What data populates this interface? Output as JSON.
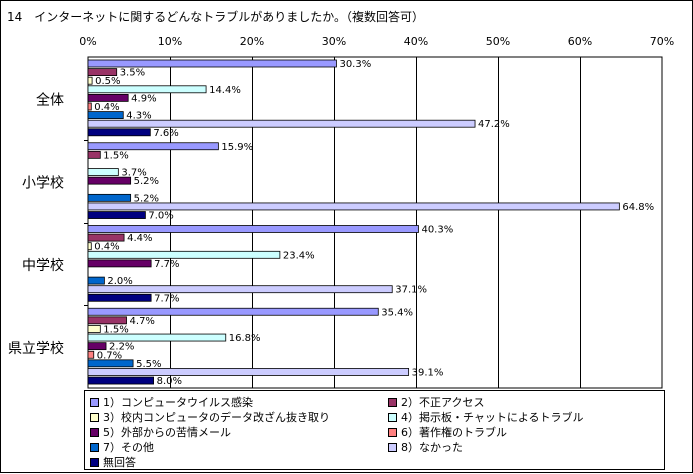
{
  "chart_data": {
    "type": "bar",
    "orientation": "horizontal",
    "title": "14　インターネットに関するどんなトラブルがありましたか。（複数回答可）",
    "unit": "%",
    "xlim": [
      0,
      70
    ],
    "ticks": [
      0,
      10,
      20,
      30,
      40,
      50,
      60,
      70
    ],
    "tick_labels": [
      "0%",
      "10%",
      "20%",
      "30%",
      "40%",
      "50%",
      "60%",
      "70%"
    ],
    "grid": true,
    "legend_position": "bottom",
    "categories": [
      "全体",
      "小学校",
      "中学校",
      "県立学校"
    ],
    "series": [
      {
        "name": "1）コンピュータウイルス感染",
        "color": "#9999ff",
        "values": [
          30.3,
          15.9,
          40.3,
          35.4
        ],
        "labels": [
          "30.3%",
          "15.9%",
          "40.3%",
          "35.4%"
        ]
      },
      {
        "name": "2）不正アクセス",
        "color": "#993366",
        "values": [
          3.5,
          1.5,
          4.4,
          4.7
        ],
        "labels": [
          "3.5%",
          "1.5%",
          "4.4%",
          "4.7%"
        ]
      },
      {
        "name": "3）校内コンピュータのデータ改ざん抜き取り",
        "color": "#ffffcc",
        "values": [
          0.5,
          0,
          0.4,
          1.5
        ],
        "labels": [
          "0.5%",
          "",
          "0.4%",
          "1.5%"
        ]
      },
      {
        "name": "4）掲示板・チャットによるトラブル",
        "color": "#ccffff",
        "values": [
          14.4,
          3.7,
          23.4,
          16.8
        ],
        "labels": [
          "14.4%",
          "3.7%",
          "23.4%",
          "16.8%"
        ]
      },
      {
        "name": "5）外部からの苦情メール",
        "color": "#660066",
        "values": [
          4.9,
          5.2,
          7.7,
          2.2
        ],
        "labels": [
          "4.9%",
          "5.2%",
          "7.7%",
          "2.2%"
        ]
      },
      {
        "name": "6）著作権のトラブル",
        "color": "#ff8080",
        "values": [
          0.4,
          0,
          0,
          0.7
        ],
        "labels": [
          "0.4%",
          "",
          "",
          "0.7%"
        ]
      },
      {
        "name": "7）その他",
        "color": "#0066cc",
        "values": [
          4.3,
          5.2,
          2.0,
          5.5
        ],
        "labels": [
          "4.3%",
          "5.2%",
          "2.0%",
          "5.5%"
        ]
      },
      {
        "name": "8）なかった",
        "color": "#ccccff",
        "values": [
          47.2,
          64.8,
          37.1,
          39.1
        ],
        "labels": [
          "47.2%",
          "64.8%",
          "37.1%",
          "39.1%"
        ]
      },
      {
        "name": "無回答",
        "color": "#000080",
        "values": [
          7.6,
          7.0,
          7.7,
          8.0
        ],
        "labels": [
          "7.6%",
          "7.0%",
          "7.7%",
          "8.0%"
        ]
      }
    ]
  }
}
